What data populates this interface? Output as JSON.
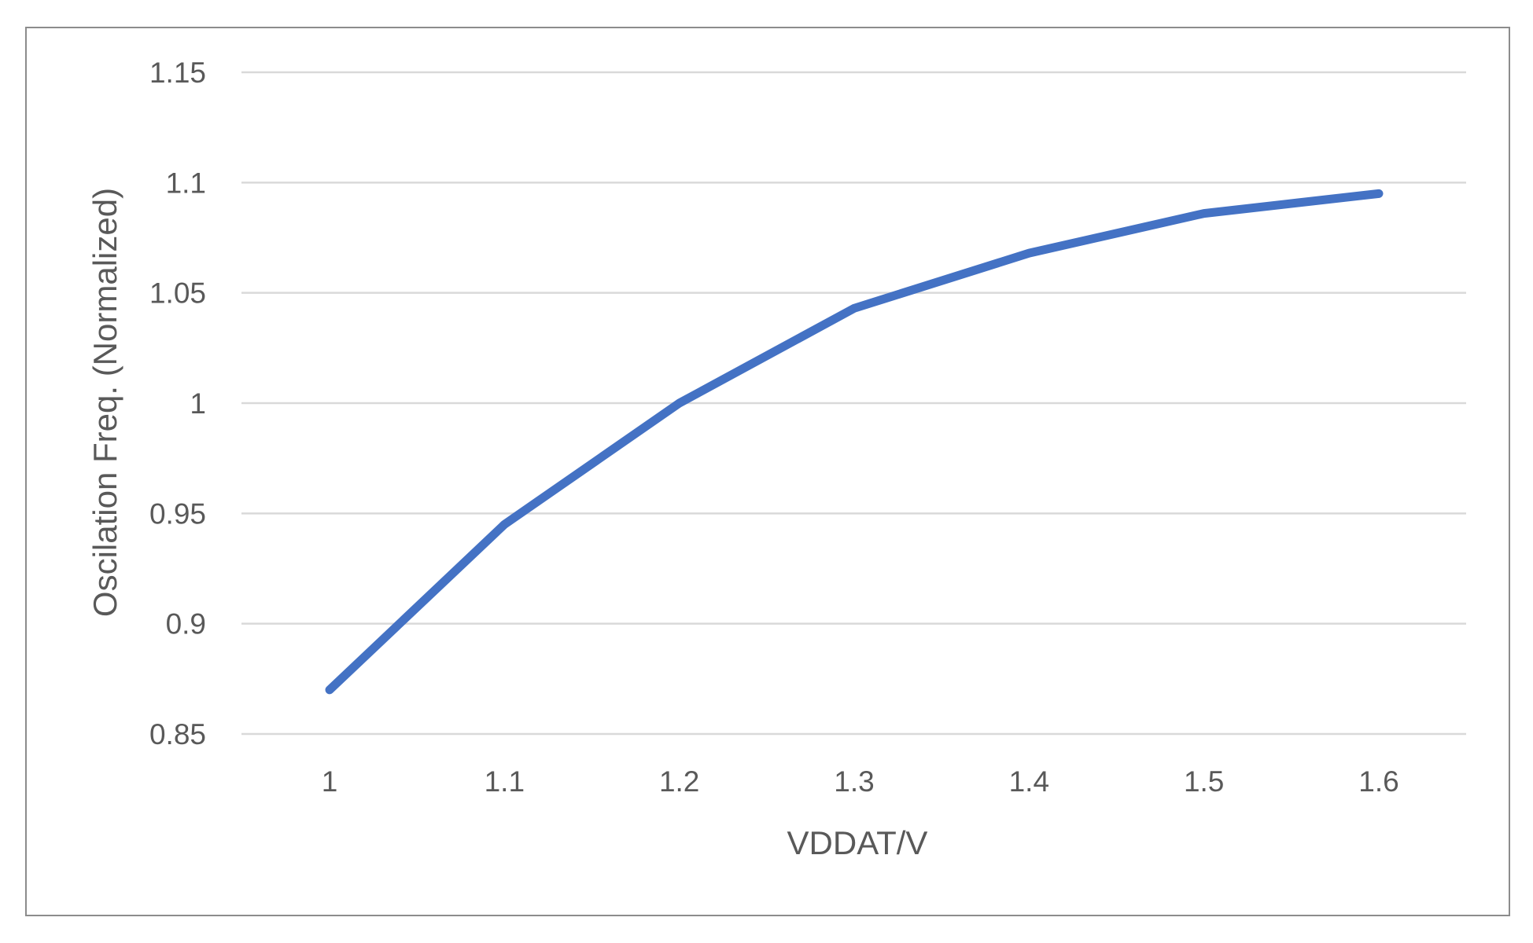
{
  "chart_data": {
    "type": "line",
    "title": "",
    "xlabel": "VDDAT/V",
    "ylabel": "Oscilation Freq. (Normalized)",
    "x": [
      1,
      1.1,
      1.2,
      1.3,
      1.4,
      1.5,
      1.6
    ],
    "x_tick_labels": [
      "1",
      "1.1",
      "1.2",
      "1.3",
      "1.4",
      "1.5",
      "1.6"
    ],
    "y_tick_labels": [
      "0.85",
      "0.9",
      "0.95",
      "1",
      "1.05",
      "1.1",
      "1.15"
    ],
    "y_ticks": [
      0.85,
      0.9,
      0.95,
      1,
      1.05,
      1.1,
      1.15
    ],
    "ylim": [
      0.85,
      1.15
    ],
    "grid": "horizontal",
    "legend": "none",
    "series": [
      {
        "color": "#4472c4",
        "values": [
          0.87,
          0.945,
          1.0,
          1.043,
          1.068,
          1.086,
          1.095
        ]
      }
    ]
  }
}
